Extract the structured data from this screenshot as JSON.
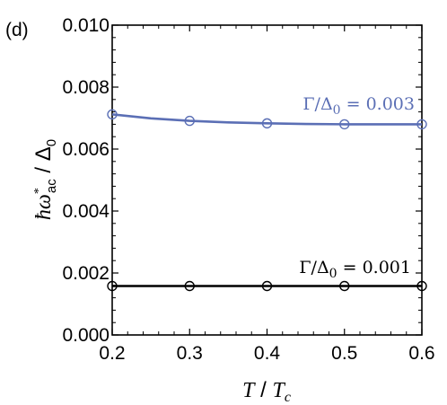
{
  "panel_label": "(d)",
  "chart_data": {
    "type": "line",
    "xlabel": "T / T_c",
    "ylabel": "ħω*_ac / Δ_0",
    "xlim": [
      0.2,
      0.6
    ],
    "ylim": [
      0.0,
      0.01
    ],
    "x_ticks": [
      "0.2",
      "0.3",
      "0.4",
      "0.5",
      "0.6"
    ],
    "y_ticks": [
      "0.000",
      "0.002",
      "0.004",
      "0.006",
      "0.008",
      "0.010"
    ],
    "series": [
      {
        "name": "Γ/Δ₀ = 0.003",
        "color": "#5b6fb5",
        "curve": [
          [
            0.2,
            0.00712
          ],
          [
            0.25,
            0.00699
          ],
          [
            0.3,
            0.00691
          ],
          [
            0.35,
            0.00686
          ],
          [
            0.4,
            0.00683
          ],
          [
            0.45,
            0.00681
          ],
          [
            0.5,
            0.0068
          ],
          [
            0.55,
            0.0068
          ],
          [
            0.6,
            0.0068
          ]
        ],
        "markers": [
          [
            0.2,
            0.00712
          ],
          [
            0.3,
            0.00691
          ],
          [
            0.4,
            0.00683
          ],
          [
            0.5,
            0.0068
          ],
          [
            0.6,
            0.0068
          ]
        ]
      },
      {
        "name": "Γ/Δ₀ = 0.001",
        "color": "#000000",
        "curve": [
          [
            0.2,
            0.00158
          ],
          [
            0.3,
            0.00158
          ],
          [
            0.4,
            0.00158
          ],
          [
            0.5,
            0.00158
          ],
          [
            0.6,
            0.00158
          ]
        ],
        "markers": [
          [
            0.2,
            0.00158
          ],
          [
            0.3,
            0.00158
          ],
          [
            0.4,
            0.00158
          ],
          [
            0.5,
            0.00158
          ],
          [
            0.6,
            0.00158
          ]
        ]
      }
    ]
  }
}
